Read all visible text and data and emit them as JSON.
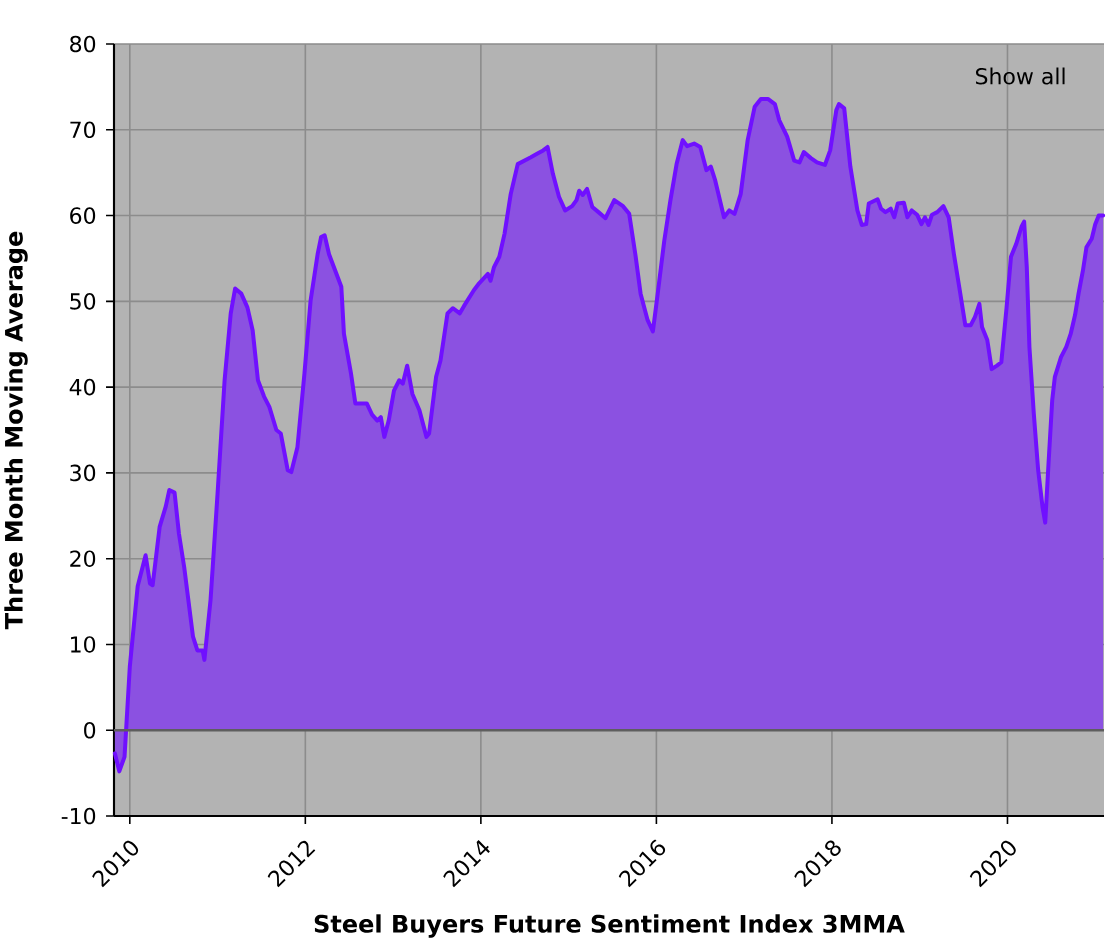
{
  "chart_data": {
    "type": "area",
    "xlabel": "Steel Buyers Future Sentiment Index 3MMA",
    "ylabel": "Three Month Moving Average",
    "annotations": [
      "Show all"
    ],
    "color": "#7010ff",
    "x": [
      2009.83,
      2009.88,
      2009.94,
      2010.0,
      2010.09,
      2010.18,
      2010.23,
      2010.26,
      2010.34,
      2010.41,
      2010.45,
      2010.51,
      2010.56,
      2010.62,
      2010.72,
      2010.77,
      2010.83,
      2010.85,
      2010.92,
      2011.0,
      2011.08,
      2011.15,
      2011.2,
      2011.27,
      2011.34,
      2011.4,
      2011.46,
      2011.53,
      2011.59,
      2011.67,
      2011.72,
      2011.8,
      2011.84,
      2011.91,
      2011.99,
      2012.06,
      2012.14,
      2012.18,
      2012.22,
      2012.27,
      2012.34,
      2012.41,
      2012.44,
      2012.52,
      2012.57,
      2012.7,
      2012.76,
      2012.82,
      2012.86,
      2012.9,
      2012.95,
      2013.01,
      2013.07,
      2013.11,
      2013.16,
      2013.22,
      2013.3,
      2013.38,
      2013.41,
      2013.49,
      2013.54,
      2013.62,
      2013.68,
      2013.76,
      2013.81,
      2013.92,
      2013.98,
      2014.08,
      2014.11,
      2014.15,
      2014.21,
      2014.27,
      2014.34,
      2014.42,
      2014.57,
      2014.64,
      2014.71,
      2014.76,
      2014.82,
      2014.89,
      2014.96,
      2015.04,
      2015.09,
      2015.12,
      2015.16,
      2015.21,
      2015.27,
      2015.34,
      2015.42,
      2015.52,
      2015.62,
      2015.69,
      2015.76,
      2015.82,
      2015.9,
      2015.96,
      2016.01,
      2016.09,
      2016.16,
      2016.23,
      2016.3,
      2016.35,
      2016.43,
      2016.5,
      2016.57,
      2016.62,
      2016.67,
      2016.77,
      2016.83,
      2016.89,
      2016.96,
      2017.04,
      2017.12,
      2017.19,
      2017.27,
      2017.35,
      2017.4,
      2017.49,
      2017.57,
      2017.63,
      2017.68,
      2017.76,
      2017.83,
      2017.92,
      2017.98,
      2018.05,
      2018.08,
      2018.14,
      2018.21,
      2018.29,
      2018.34,
      2018.39,
      2018.42,
      2018.52,
      2018.56,
      2018.61,
      2018.67,
      2018.71,
      2018.75,
      2018.82,
      2018.86,
      2018.91,
      2018.97,
      2019.02,
      2019.06,
      2019.1,
      2019.14,
      2019.2,
      2019.27,
      2019.33,
      2019.39,
      2019.45,
      2019.52,
      2019.58,
      2019.63,
      2019.68,
      2019.71,
      2019.77,
      2019.82,
      2019.88,
      2019.93,
      2019.99,
      2020.04,
      2020.1,
      2020.16,
      2020.19,
      2020.22,
      2020.25,
      2020.3,
      2020.35,
      2020.4,
      2020.43,
      2020.47,
      2020.51,
      2020.54,
      2020.61,
      2020.67,
      2020.72,
      2020.77,
      2020.81,
      2020.86,
      2020.9,
      2020.96,
      2021.0,
      2021.04,
      2021.09
    ],
    "values": [
      -2.7,
      -4.8,
      -3.1,
      7.4,
      16.8,
      20.4,
      17.1,
      16.9,
      23.7,
      26.1,
      28.0,
      27.7,
      22.9,
      19.0,
      10.9,
      9.3,
      9.3,
      8.2,
      15.2,
      27.6,
      40.8,
      48.6,
      51.5,
      50.9,
      49.3,
      46.6,
      40.8,
      38.9,
      37.7,
      35.0,
      34.6,
      30.3,
      30.1,
      33.0,
      41.6,
      50.1,
      55.5,
      57.5,
      57.7,
      55.5,
      53.6,
      51.7,
      46.2,
      41.6,
      38.1,
      38.1,
      36.8,
      36.1,
      36.5,
      34.2,
      36.1,
      39.6,
      40.8,
      40.4,
      42.5,
      39.2,
      37.3,
      34.2,
      34.6,
      41.2,
      43.1,
      48.6,
      49.2,
      48.6,
      49.5,
      51.3,
      52.1,
      53.2,
      52.4,
      54.0,
      55.2,
      57.9,
      62.5,
      66.0,
      66.8,
      67.2,
      67.6,
      68.0,
      64.9,
      62.2,
      60.6,
      61.1,
      61.8,
      62.9,
      62.4,
      63.1,
      61.0,
      60.4,
      59.7,
      61.8,
      61.1,
      60.2,
      55.5,
      50.9,
      47.8,
      46.5,
      50.5,
      57.1,
      61.8,
      66.0,
      68.8,
      68.1,
      68.4,
      68.0,
      65.3,
      65.7,
      64.1,
      59.8,
      60.6,
      60.2,
      62.5,
      68.8,
      72.7,
      73.6,
      73.6,
      73.0,
      71.1,
      69.2,
      66.4,
      66.2,
      67.4,
      66.7,
      66.2,
      65.9,
      67.6,
      72.3,
      73.0,
      72.5,
      65.7,
      60.6,
      58.9,
      59.0,
      61.4,
      61.9,
      60.8,
      60.4,
      60.8,
      59.8,
      61.4,
      61.5,
      59.8,
      60.6,
      60.1,
      59.0,
      59.8,
      58.9,
      60.1,
      60.4,
      61.1,
      59.8,
      55.5,
      51.7,
      47.2,
      47.2,
      48.2,
      49.7,
      47.0,
      45.5,
      42.1,
      42.5,
      42.9,
      49.3,
      55.2,
      56.7,
      58.7,
      59.3,
      54.0,
      44.7,
      36.9,
      30.3,
      26.0,
      24.2,
      31.5,
      38.5,
      41.2,
      43.5,
      44.7,
      46.2,
      48.4,
      50.9,
      53.6,
      56.3,
      57.3,
      59.0,
      60.0,
      60.0
    ],
    "xlim": [
      2009.82,
      2021.1
    ],
    "ylim": [
      -10,
      80
    ],
    "xticks": [
      2010,
      2012,
      2014,
      2016,
      2018,
      2020
    ],
    "yticks": [
      -10,
      0,
      10,
      20,
      30,
      40,
      50,
      60,
      70,
      80
    ],
    "grid": true,
    "ref_lines": [
      {
        "axis": "y",
        "value": 0,
        "color": "#5e5e5e"
      }
    ]
  }
}
